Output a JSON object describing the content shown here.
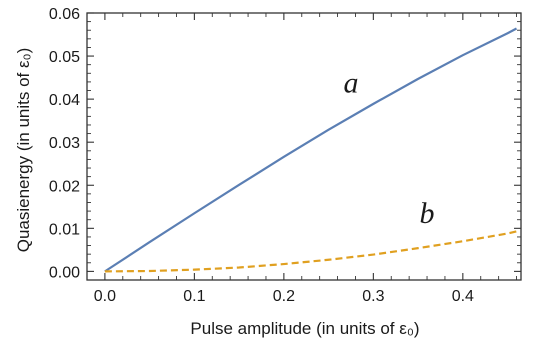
{
  "chart_data": {
    "type": "line",
    "title": "",
    "xlabel": "Pulse amplitude (in units of ε₀)",
    "ylabel": "Quasienergy (in units of ε₀)",
    "xlim": [
      -0.02,
      0.465
    ],
    "ylim": [
      -0.002,
      0.06
    ],
    "xticks": [
      {
        "value": 0.0,
        "label": "0.0"
      },
      {
        "value": 0.1,
        "label": "0.1"
      },
      {
        "value": 0.2,
        "label": "0.2"
      },
      {
        "value": 0.3,
        "label": "0.3"
      },
      {
        "value": 0.4,
        "label": "0.4"
      }
    ],
    "yticks": [
      {
        "value": 0.0,
        "label": "0.00"
      },
      {
        "value": 0.01,
        "label": "0.01"
      },
      {
        "value": 0.02,
        "label": "0.02"
      },
      {
        "value": 0.03,
        "label": "0.03"
      },
      {
        "value": 0.04,
        "label": "0.04"
      },
      {
        "value": 0.05,
        "label": "0.05"
      },
      {
        "value": 0.06,
        "label": "0.06"
      }
    ],
    "grid": false,
    "series": [
      {
        "name": "",
        "color": "#5b7fb4",
        "dash": "solid",
        "x": [
          0.0,
          0.05,
          0.1,
          0.15,
          0.2,
          0.25,
          0.3,
          0.35,
          0.4,
          0.45,
          0.46
        ],
        "y": [
          0.0,
          0.0068,
          0.0135,
          0.0201,
          0.0266,
          0.0329,
          0.0389,
          0.0447,
          0.0502,
          0.0553,
          0.0564
        ]
      },
      {
        "name": "",
        "color": "#e0a020",
        "dash": "dashed",
        "x": [
          0.0,
          0.05,
          0.1,
          0.15,
          0.2,
          0.25,
          0.3,
          0.35,
          0.4,
          0.45,
          0.46
        ],
        "y": [
          0.0,
          9e-05,
          0.0004,
          0.0009,
          0.0017,
          0.0027,
          0.0039,
          0.0054,
          0.007,
          0.0088,
          0.0093
        ]
      }
    ],
    "annotations": [
      {
        "text": "a",
        "x": 0.275,
        "y": 0.0415
      },
      {
        "text": "b",
        "x": 0.36,
        "y": 0.0112
      }
    ]
  }
}
